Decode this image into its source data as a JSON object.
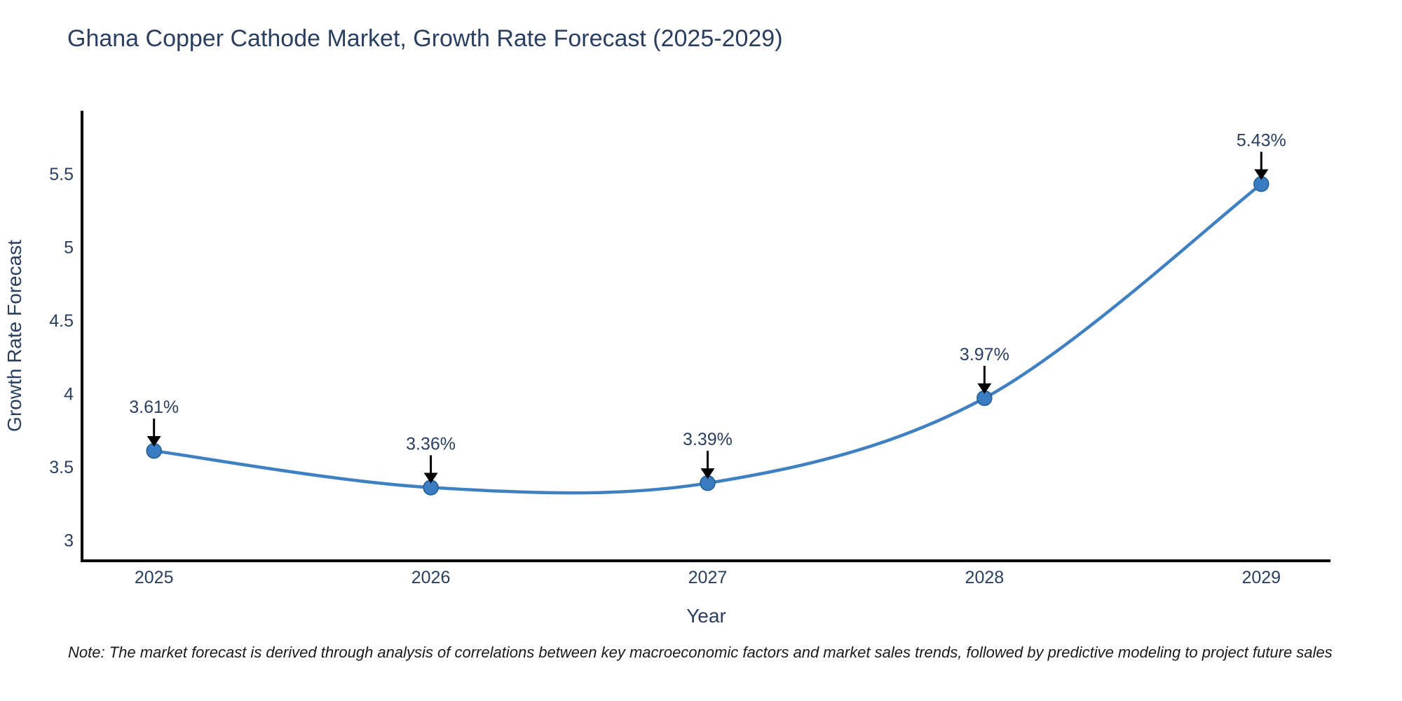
{
  "title": "Ghana Copper Cathode Market, Growth Rate Forecast (2025-2029)",
  "note": {
    "text": "Note: The market forecast is derived through analysis of correlations between key macroeconomic factors and market sales trends, followed by predictive modeling to project future sales"
  },
  "chart_data": {
    "type": "line",
    "title": "Ghana Copper Cathode Market, Growth Rate Forecast (2025-2029)",
    "x": [
      2025,
      2026,
      2027,
      2028,
      2029
    ],
    "y": [
      3.61,
      3.36,
      3.39,
      3.97,
      5.43
    ],
    "point_labels": [
      "3.61%",
      "3.36%",
      "3.39%",
      "3.97%",
      "5.43%"
    ],
    "xlabel": "Year",
    "ylabel": "Growth Rate Forecast",
    "xticks": [
      2025,
      2026,
      2027,
      2028,
      2029
    ],
    "yticks": [
      3,
      3.5,
      4,
      4.5,
      5,
      5.5
    ],
    "xlim": [
      2024.74,
      2029.25
    ],
    "ylim": [
      2.86,
      5.93
    ],
    "grid": false,
    "legend_position": "none",
    "line_shape": "spline",
    "colors": {
      "line": "#3e80c2",
      "marker_fill": "#3a7cc1",
      "marker_edge": "#245d8f",
      "axis": "#000000",
      "text": "#2a3f5f",
      "annotation_arrow": "#000000",
      "background": "#ffffff"
    }
  }
}
